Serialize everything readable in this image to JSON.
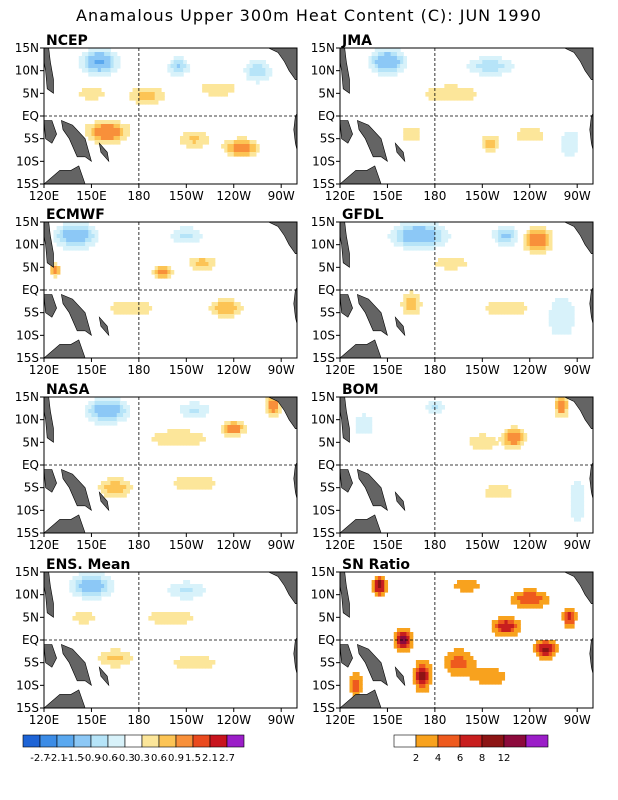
{
  "title": "Anamalous Upper 300m Heat Content (C): JUN 1990",
  "colors": {
    "neg": [
      "#1e64d6",
      "#3c8ce6",
      "#5aa8ef",
      "#8cc8f6",
      "#b6e4f8",
      "#d8f2fa"
    ],
    "pos": [
      "#fce69a",
      "#fcc455",
      "#f8903a",
      "#ea4a1e",
      "#c8141e",
      "#961e1e",
      "#9b1ec8"
    ],
    "sn": [
      "#ffffff",
      "#f8a21e",
      "#ee5a1e",
      "#c81e1e",
      "#8c1414",
      "#8c0a3c",
      "#9b1ec8"
    ],
    "land": "#646464"
  },
  "axes": {
    "xticks": [
      "120E",
      "150E",
      "180",
      "150W",
      "120W",
      "90W"
    ],
    "yticks": [
      "15N",
      "10N",
      "5N",
      "EQ",
      "5S",
      "10S",
      "15S"
    ]
  },
  "chart_data": [
    {
      "type": "heatmap",
      "title": "NCEP",
      "xlim": [
        120,
        280
      ],
      "ylim": [
        -15,
        15
      ],
      "grid": "dashed at 180 and EQ",
      "blobs": [
        {
          "x": 160,
          "y": -3.5,
          "value": 1.4,
          "sx": 12,
          "sy": 2.2
        },
        {
          "x": 245,
          "y": -7,
          "value": 1.3,
          "sx": 10,
          "sy": 1.8
        },
        {
          "x": 215,
          "y": -5,
          "value": 0.7,
          "sx": 10,
          "sy": 2
        },
        {
          "x": 185,
          "y": 4.5,
          "value": 0.8,
          "sx": 12,
          "sy": 1.8
        },
        {
          "x": 150,
          "y": 5,
          "value": 0.6,
          "sx": 10,
          "sy": 1.5
        },
        {
          "x": 230,
          "y": 6,
          "value": 0.5,
          "sx": 15,
          "sy": 2
        },
        {
          "x": 155,
          "y": 12,
          "value": -1.6,
          "sx": 10,
          "sy": 2.5
        },
        {
          "x": 205,
          "y": 11,
          "value": -1.0,
          "sx": 6,
          "sy": 2
        },
        {
          "x": 255,
          "y": 10,
          "value": -0.9,
          "sx": 8,
          "sy": 2.5
        }
      ]
    },
    {
      "type": "heatmap",
      "title": "JMA",
      "xlim": [
        120,
        280
      ],
      "ylim": [
        -15,
        15
      ],
      "grid": "dashed at 180 and EQ",
      "blobs": [
        {
          "x": 190,
          "y": 5,
          "value": 0.6,
          "sx": 20,
          "sy": 2
        },
        {
          "x": 215,
          "y": -6,
          "value": 0.8,
          "sx": 6,
          "sy": 2
        },
        {
          "x": 240,
          "y": -4,
          "value": 0.6,
          "sx": 10,
          "sy": 2
        },
        {
          "x": 165,
          "y": -4,
          "value": 0.5,
          "sx": 8,
          "sy": 2
        },
        {
          "x": 150,
          "y": 12,
          "value": -1.5,
          "sx": 10,
          "sy": 2.5
        },
        {
          "x": 215,
          "y": 11,
          "value": -0.8,
          "sx": 15,
          "sy": 2
        },
        {
          "x": 265,
          "y": -6,
          "value": -0.5,
          "sx": 8,
          "sy": 4
        }
      ]
    },
    {
      "type": "heatmap",
      "title": "ECMWF",
      "xlim": [
        120,
        280
      ],
      "ylim": [
        -15,
        15
      ],
      "grid": "dashed at 180 and EQ",
      "blobs": [
        {
          "x": 127,
          "y": 4.5,
          "value": 1.3,
          "sx": 3,
          "sy": 1.2
        },
        {
          "x": 195,
          "y": 4,
          "value": 1.2,
          "sx": 6,
          "sy": 1.2
        },
        {
          "x": 220,
          "y": 6,
          "value": 0.8,
          "sx": 8,
          "sy": 1.5
        },
        {
          "x": 235,
          "y": -4,
          "value": 0.9,
          "sx": 10,
          "sy": 2
        },
        {
          "x": 175,
          "y": -4,
          "value": 0.6,
          "sx": 15,
          "sy": 2
        },
        {
          "x": 140,
          "y": 12,
          "value": -1.4,
          "sx": 12,
          "sy": 2.5
        },
        {
          "x": 210,
          "y": 12,
          "value": -0.7,
          "sx": 10,
          "sy": 2
        }
      ]
    },
    {
      "type": "heatmap",
      "title": "GFDL",
      "xlim": [
        120,
        280
      ],
      "ylim": [
        -15,
        15
      ],
      "grid": "dashed at 180 and EQ",
      "blobs": [
        {
          "x": 245,
          "y": 11,
          "value": 1.4,
          "sx": 8,
          "sy": 2.5
        },
        {
          "x": 190,
          "y": 6,
          "value": 0.6,
          "sx": 12,
          "sy": 1.5
        },
        {
          "x": 165,
          "y": -3,
          "value": 0.9,
          "sx": 6,
          "sy": 2.5
        },
        {
          "x": 225,
          "y": -4,
          "value": 0.6,
          "sx": 15,
          "sy": 2
        },
        {
          "x": 170,
          "y": 12,
          "value": -1.5,
          "sx": 15,
          "sy": 2.5
        },
        {
          "x": 225,
          "y": 12,
          "value": -1.0,
          "sx": 8,
          "sy": 2
        },
        {
          "x": 260,
          "y": -6,
          "value": -0.6,
          "sx": 10,
          "sy": 5
        }
      ]
    },
    {
      "type": "heatmap",
      "title": "NASA",
      "xlim": [
        120,
        280
      ],
      "ylim": [
        -15,
        15
      ],
      "grid": "dashed at 180 and EQ",
      "blobs": [
        {
          "x": 240,
          "y": 8,
          "value": 1.3,
          "sx": 6,
          "sy": 1.5
        },
        {
          "x": 265,
          "y": 13,
          "value": 1.5,
          "sx": 4,
          "sy": 2
        },
        {
          "x": 205,
          "y": 6,
          "value": 0.6,
          "sx": 20,
          "sy": 2
        },
        {
          "x": 165,
          "y": -5,
          "value": 0.9,
          "sx": 10,
          "sy": 2
        },
        {
          "x": 215,
          "y": -4,
          "value": 0.6,
          "sx": 15,
          "sy": 2
        },
        {
          "x": 160,
          "y": 12,
          "value": -1.4,
          "sx": 12,
          "sy": 2.5
        },
        {
          "x": 215,
          "y": 12,
          "value": -0.7,
          "sx": 10,
          "sy": 2
        }
      ]
    },
    {
      "type": "heatmap",
      "title": "BOM",
      "xlim": [
        120,
        280
      ],
      "ylim": [
        -15,
        15
      ],
      "grid": "dashed at 180 and EQ",
      "blobs": [
        {
          "x": 230,
          "y": 6,
          "value": 1.5,
          "sx": 6,
          "sy": 2
        },
        {
          "x": 260,
          "y": 13,
          "value": 1.4,
          "sx": 4,
          "sy": 2
        },
        {
          "x": 210,
          "y": 5,
          "value": 0.6,
          "sx": 10,
          "sy": 2
        },
        {
          "x": 220,
          "y": -6,
          "value": 0.5,
          "sx": 12,
          "sy": 2
        },
        {
          "x": 180,
          "y": 13,
          "value": -0.7,
          "sx": 6,
          "sy": 1.5
        },
        {
          "x": 135,
          "y": 9,
          "value": -0.5,
          "sx": 8,
          "sy": 3
        },
        {
          "x": 270,
          "y": -8,
          "value": -0.6,
          "sx": 6,
          "sy": 5
        }
      ]
    },
    {
      "type": "heatmap",
      "title": "ENS. Mean",
      "xlim": [
        120,
        280
      ],
      "ylim": [
        -15,
        15
      ],
      "grid": "dashed at 180 and EQ",
      "blobs": [
        {
          "x": 165,
          "y": -4,
          "value": 0.7,
          "sx": 12,
          "sy": 2
        },
        {
          "x": 215,
          "y": -5,
          "value": 0.5,
          "sx": 18,
          "sy": 2
        },
        {
          "x": 200,
          "y": 5,
          "value": 0.5,
          "sx": 20,
          "sy": 2
        },
        {
          "x": 145,
          "y": 5,
          "value": 0.6,
          "sx": 8,
          "sy": 1.5
        },
        {
          "x": 150,
          "y": 12,
          "value": -1.3,
          "sx": 12,
          "sy": 2.5
        },
        {
          "x": 210,
          "y": 11,
          "value": -0.7,
          "sx": 12,
          "sy": 2
        }
      ]
    },
    {
      "type": "heatmap",
      "title": "SN Ratio",
      "xlim": [
        120,
        280
      ],
      "ylim": [
        -15,
        15
      ],
      "grid": "dashed at 180 and EQ",
      "scale": "sn",
      "blobs": [
        {
          "x": 145,
          "y": 12,
          "value": 10,
          "sx": 4,
          "sy": 2
        },
        {
          "x": 160,
          "y": 0,
          "value": 11,
          "sx": 5,
          "sy": 2
        },
        {
          "x": 172,
          "y": -8,
          "value": 9,
          "sx": 5,
          "sy": 3
        },
        {
          "x": 225,
          "y": 3,
          "value": 8,
          "sx": 8,
          "sy": 2
        },
        {
          "x": 250,
          "y": -2,
          "value": 9,
          "sx": 6,
          "sy": 2
        },
        {
          "x": 240,
          "y": 9,
          "value": 6,
          "sx": 12,
          "sy": 2
        },
        {
          "x": 195,
          "y": -5,
          "value": 5,
          "sx": 10,
          "sy": 3
        },
        {
          "x": 215,
          "y": -8,
          "value": 4,
          "sx": 12,
          "sy": 2
        },
        {
          "x": 265,
          "y": 5,
          "value": 7,
          "sx": 4,
          "sy": 2
        },
        {
          "x": 130,
          "y": -10,
          "value": 5,
          "sx": 4,
          "sy": 3
        },
        {
          "x": 200,
          "y": 12,
          "value": 3,
          "sx": 12,
          "sy": 2
        }
      ]
    }
  ],
  "colorbar_anomaly": {
    "labels": [
      "-2.7",
      "-2.1",
      "-1.5",
      "-0.9",
      "-0.6",
      "-0.3",
      "0.3",
      "0.6",
      "0.9",
      "1.5",
      "2.1",
      "2.7"
    ]
  },
  "colorbar_sn": {
    "labels": [
      "2",
      "4",
      "6",
      "8",
      "12"
    ]
  }
}
